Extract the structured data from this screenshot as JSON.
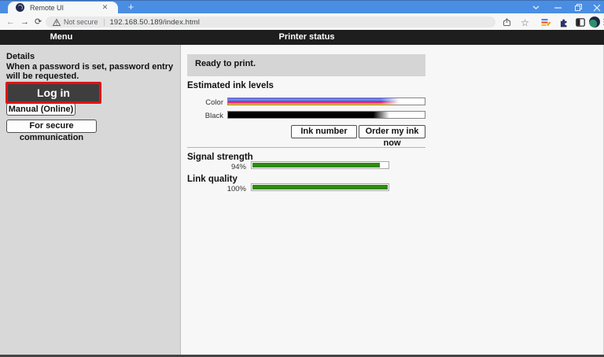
{
  "browser": {
    "tab": {
      "title": "Remote UI",
      "close_glyph": "✕",
      "new_tab_glyph": "+"
    },
    "address": {
      "security_label": "Not secure",
      "url": "192.168.50.189/index.html"
    },
    "nav": {
      "back_glyph": "←",
      "forward_glyph": "→",
      "reload_glyph": "⟳"
    },
    "action_icons": {
      "star_glyph": "☆",
      "menu_dots_glyph": "⋮"
    }
  },
  "header": {
    "menu_label": "Menu",
    "title": "Printer status"
  },
  "sidebar": {
    "details_label": "Details",
    "note": "When a password is set, password entry will be requested.",
    "login_label": "Log in",
    "manual_label": "Manual (Online)",
    "secure_label": "For secure communication",
    "login_highlight_color": "#e31212"
  },
  "main": {
    "status_message": "Ready to print.",
    "ink": {
      "heading": "Estimated ink levels",
      "rows": [
        {
          "label": "Color",
          "level_percent": 88
        },
        {
          "label": "Black",
          "level_percent": 82
        }
      ],
      "ink_number_label": "Ink number",
      "order_label": "Order my ink now"
    },
    "network": {
      "signal": {
        "heading": "Signal strength",
        "value_label": "94%",
        "percent": 94
      },
      "link": {
        "heading": "Link quality",
        "value_label": "100%",
        "percent": 100
      },
      "bar_color": "#2e8b0c"
    }
  }
}
